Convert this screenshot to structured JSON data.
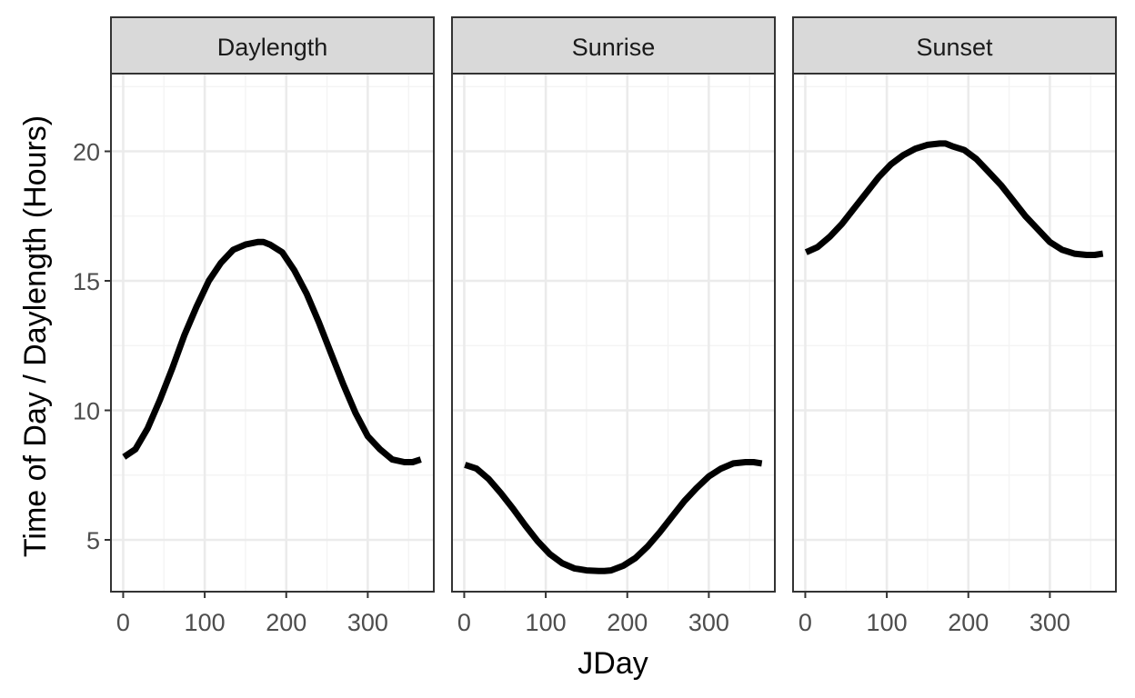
{
  "chart_data": {
    "type": "line",
    "xlabel": "JDay",
    "ylabel": "Time of Day / Daylength (Hours)",
    "xlim": [
      -15,
      381
    ],
    "ylim": [
      3.0,
      23.0
    ],
    "x_ticks": [
      0,
      100,
      200,
      300
    ],
    "x_tick_labels": [
      "0",
      "100",
      "200",
      "300"
    ],
    "y_ticks": [
      5,
      10,
      15,
      20
    ],
    "y_tick_labels": [
      "5",
      "10",
      "15",
      "20"
    ],
    "grid": true,
    "facets": [
      {
        "strip": "Daylength",
        "x": [
          1,
          15,
          30,
          45,
          60,
          75,
          90,
          105,
          120,
          135,
          150,
          165,
          172,
          180,
          195,
          210,
          225,
          240,
          255,
          270,
          285,
          300,
          315,
          330,
          345,
          355,
          365
        ],
        "y": [
          8.2,
          8.5,
          9.3,
          10.4,
          11.6,
          12.9,
          14.0,
          15.0,
          15.7,
          16.2,
          16.4,
          16.5,
          16.5,
          16.4,
          16.1,
          15.4,
          14.5,
          13.4,
          12.2,
          11.0,
          9.9,
          9.0,
          8.5,
          8.1,
          8.0,
          8.0,
          8.1
        ]
      },
      {
        "strip": "Sunrise",
        "x": [
          1,
          15,
          30,
          45,
          60,
          75,
          90,
          105,
          120,
          135,
          150,
          165,
          172,
          180,
          195,
          210,
          225,
          240,
          255,
          270,
          285,
          300,
          315,
          330,
          345,
          355,
          365
        ],
        "y": [
          7.9,
          7.75,
          7.35,
          6.8,
          6.2,
          5.55,
          4.95,
          4.45,
          4.1,
          3.9,
          3.82,
          3.8,
          3.8,
          3.82,
          4.0,
          4.3,
          4.75,
          5.3,
          5.9,
          6.5,
          7.0,
          7.45,
          7.75,
          7.95,
          8.0,
          8.0,
          7.95
        ]
      },
      {
        "strip": "Sunset",
        "x": [
          1,
          15,
          30,
          45,
          60,
          75,
          90,
          105,
          120,
          135,
          150,
          165,
          172,
          180,
          195,
          210,
          225,
          240,
          255,
          270,
          285,
          300,
          315,
          330,
          345,
          355,
          365
        ],
        "y": [
          16.1,
          16.3,
          16.7,
          17.2,
          17.8,
          18.4,
          19.0,
          19.5,
          19.85,
          20.1,
          20.25,
          20.3,
          20.3,
          20.2,
          20.05,
          19.7,
          19.2,
          18.7,
          18.1,
          17.5,
          17.0,
          16.5,
          16.2,
          16.05,
          16.0,
          16.0,
          16.05
        ]
      }
    ]
  }
}
